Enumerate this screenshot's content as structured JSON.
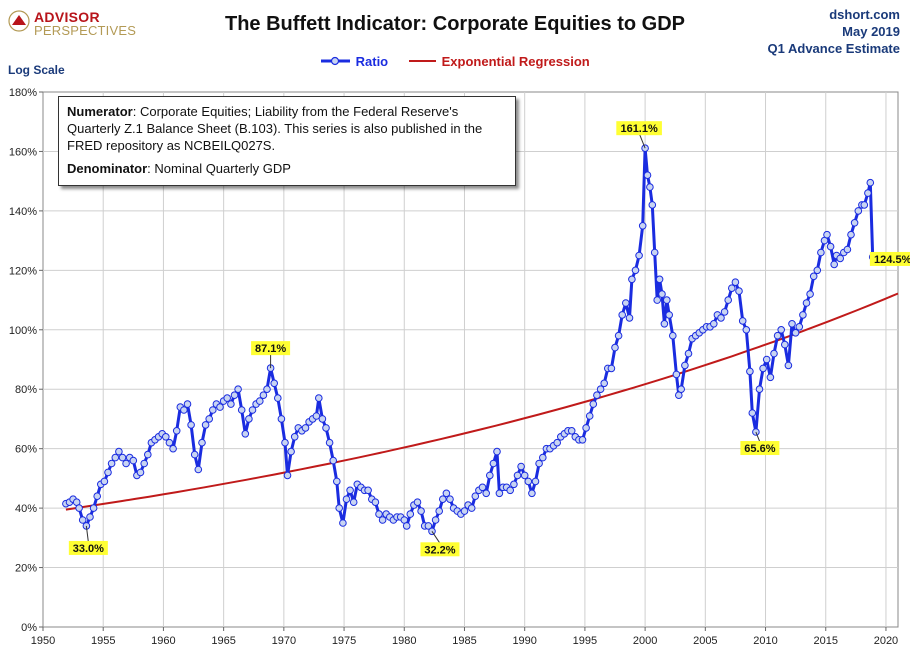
{
  "header": {
    "logo_line1": "ADVISOR",
    "logo_line2": "PERSPECTIVES",
    "title": "The Buffett Indicator: Corporate Equities to GDP",
    "source_line1": "dshort.com",
    "source_line2": "May 2019",
    "source_line3": "Q1 Advance Estimate"
  },
  "scale_label": "Log Scale",
  "note": {
    "numerator_label": "Numerator",
    "numerator_text": ": Corporate Equities; Liability from the Federal Reserve's Quarterly Z.1 Balance Sheet (B.103). This series is also published in the FRED repository  as NCBEILQ027S.",
    "denominator_label": "Denominator",
    "denominator_text": ": Nominal Quarterly GDP"
  },
  "colors": {
    "ratio_line": "#1a2ce0",
    "ratio_marker_fill": "#c8d4f2",
    "regression_line": "#c01a1a",
    "annotation_bg": "#ffff33",
    "grid": "#cfcfcf"
  },
  "chart_data": {
    "type": "line",
    "title": "The Buffett Indicator: Corporate Equities to GDP",
    "xlabel": "",
    "ylabel": "",
    "xlim": [
      1950,
      2021
    ],
    "ylim": [
      0,
      180
    ],
    "x_ticks": [
      1950,
      1955,
      1960,
      1965,
      1970,
      1975,
      1980,
      1985,
      1990,
      1995,
      2000,
      2005,
      2010,
      2015,
      2020
    ],
    "y_ticks": [
      0,
      20,
      40,
      60,
      80,
      100,
      120,
      140,
      160,
      180
    ],
    "y_tick_format": "percent",
    "grid": true,
    "legend_position": "top-center",
    "series": [
      {
        "name": "Ratio",
        "points": [
          [
            1951.9,
            41.5
          ],
          [
            1952.2,
            42
          ],
          [
            1952.5,
            43
          ],
          [
            1952.8,
            42
          ],
          [
            1953.0,
            40
          ],
          [
            1953.3,
            36
          ],
          [
            1953.6,
            34
          ],
          [
            1953.9,
            37
          ],
          [
            1954.2,
            40
          ],
          [
            1954.5,
            44
          ],
          [
            1954.8,
            48
          ],
          [
            1955.1,
            49
          ],
          [
            1955.4,
            52
          ],
          [
            1955.7,
            55
          ],
          [
            1956.0,
            57
          ],
          [
            1956.3,
            59
          ],
          [
            1956.6,
            57
          ],
          [
            1956.9,
            55
          ],
          [
            1957.2,
            57
          ],
          [
            1957.5,
            56
          ],
          [
            1957.8,
            51
          ],
          [
            1958.1,
            52
          ],
          [
            1958.4,
            55
          ],
          [
            1958.7,
            58
          ],
          [
            1959.0,
            62
          ],
          [
            1959.3,
            63
          ],
          [
            1959.6,
            64
          ],
          [
            1959.9,
            65
          ],
          [
            1960.2,
            64
          ],
          [
            1960.5,
            62
          ],
          [
            1960.8,
            60
          ],
          [
            1961.1,
            66
          ],
          [
            1961.4,
            74
          ],
          [
            1961.7,
            73
          ],
          [
            1962.0,
            75
          ],
          [
            1962.3,
            68
          ],
          [
            1962.6,
            58
          ],
          [
            1962.9,
            53
          ],
          [
            1963.2,
            62
          ],
          [
            1963.5,
            68
          ],
          [
            1963.8,
            70
          ],
          [
            1964.1,
            73
          ],
          [
            1964.4,
            75
          ],
          [
            1964.7,
            74
          ],
          [
            1965.0,
            76
          ],
          [
            1965.3,
            77
          ],
          [
            1965.6,
            75
          ],
          [
            1965.9,
            78
          ],
          [
            1966.2,
            80
          ],
          [
            1966.5,
            73
          ],
          [
            1966.8,
            65
          ],
          [
            1967.1,
            70
          ],
          [
            1967.4,
            73
          ],
          [
            1967.7,
            75
          ],
          [
            1968.0,
            76
          ],
          [
            1968.3,
            78
          ],
          [
            1968.6,
            80
          ],
          [
            1968.9,
            87.1
          ],
          [
            1969.2,
            82
          ],
          [
            1969.5,
            77
          ],
          [
            1969.8,
            70
          ],
          [
            1970.1,
            62
          ],
          [
            1970.3,
            51
          ],
          [
            1970.6,
            59
          ],
          [
            1970.9,
            64
          ],
          [
            1971.2,
            67
          ],
          [
            1971.5,
            66
          ],
          [
            1971.8,
            67
          ],
          [
            1972.1,
            69
          ],
          [
            1972.4,
            70
          ],
          [
            1972.7,
            71
          ],
          [
            1972.9,
            77
          ],
          [
            1973.2,
            70
          ],
          [
            1973.5,
            67
          ],
          [
            1973.8,
            62
          ],
          [
            1974.1,
            56
          ],
          [
            1974.4,
            49
          ],
          [
            1974.6,
            40
          ],
          [
            1974.9,
            35
          ],
          [
            1975.2,
            43
          ],
          [
            1975.5,
            46
          ],
          [
            1975.8,
            42
          ],
          [
            1976.1,
            48
          ],
          [
            1976.4,
            47
          ],
          [
            1976.7,
            46
          ],
          [
            1977.0,
            46
          ],
          [
            1977.3,
            43
          ],
          [
            1977.6,
            42
          ],
          [
            1977.9,
            38
          ],
          [
            1978.2,
            36
          ],
          [
            1978.5,
            38
          ],
          [
            1978.8,
            37
          ],
          [
            1979.1,
            36
          ],
          [
            1979.4,
            37
          ],
          [
            1979.7,
            37
          ],
          [
            1980.0,
            36
          ],
          [
            1980.2,
            34
          ],
          [
            1980.5,
            38
          ],
          [
            1980.8,
            41
          ],
          [
            1981.1,
            42
          ],
          [
            1981.4,
            39
          ],
          [
            1981.7,
            34
          ],
          [
            1982.0,
            34
          ],
          [
            1982.3,
            32.2
          ],
          [
            1982.6,
            36
          ],
          [
            1982.9,
            39
          ],
          [
            1983.2,
            43
          ],
          [
            1983.5,
            45
          ],
          [
            1983.8,
            43
          ],
          [
            1984.1,
            40
          ],
          [
            1984.4,
            39
          ],
          [
            1984.7,
            38
          ],
          [
            1985.0,
            39
          ],
          [
            1985.3,
            41
          ],
          [
            1985.6,
            40
          ],
          [
            1985.9,
            44
          ],
          [
            1986.2,
            46
          ],
          [
            1986.5,
            47
          ],
          [
            1986.8,
            45
          ],
          [
            1987.1,
            51
          ],
          [
            1987.4,
            55
          ],
          [
            1987.7,
            59
          ],
          [
            1987.9,
            45
          ],
          [
            1988.2,
            47
          ],
          [
            1988.5,
            47
          ],
          [
            1988.8,
            46
          ],
          [
            1989.1,
            48
          ],
          [
            1989.4,
            51
          ],
          [
            1989.7,
            54
          ],
          [
            1990.0,
            51
          ],
          [
            1990.3,
            49
          ],
          [
            1990.6,
            45
          ],
          [
            1990.9,
            49
          ],
          [
            1991.2,
            55
          ],
          [
            1991.5,
            57
          ],
          [
            1991.8,
            60
          ],
          [
            1992.1,
            60
          ],
          [
            1992.4,
            61
          ],
          [
            1992.7,
            62
          ],
          [
            1993.0,
            64
          ],
          [
            1993.3,
            65
          ],
          [
            1993.6,
            66
          ],
          [
            1993.9,
            66
          ],
          [
            1994.2,
            64
          ],
          [
            1994.5,
            63
          ],
          [
            1994.8,
            63
          ],
          [
            1995.1,
            67
          ],
          [
            1995.4,
            71
          ],
          [
            1995.7,
            75
          ],
          [
            1996.0,
            78
          ],
          [
            1996.3,
            80
          ],
          [
            1996.6,
            82
          ],
          [
            1996.9,
            87
          ],
          [
            1997.2,
            87
          ],
          [
            1997.5,
            94
          ],
          [
            1997.8,
            98
          ],
          [
            1998.1,
            105
          ],
          [
            1998.4,
            109
          ],
          [
            1998.7,
            104
          ],
          [
            1998.9,
            117
          ],
          [
            1999.2,
            120
          ],
          [
            1999.5,
            125
          ],
          [
            1999.8,
            135
          ],
          [
            2000.0,
            161.1
          ],
          [
            2000.2,
            152
          ],
          [
            2000.4,
            148
          ],
          [
            2000.6,
            142
          ],
          [
            2000.8,
            126
          ],
          [
            2001.0,
            110
          ],
          [
            2001.2,
            117
          ],
          [
            2001.4,
            112
          ],
          [
            2001.6,
            102
          ],
          [
            2001.8,
            110
          ],
          [
            2002.0,
            105
          ],
          [
            2002.3,
            98
          ],
          [
            2002.6,
            85
          ],
          [
            2002.8,
            78
          ],
          [
            2003.0,
            80
          ],
          [
            2003.3,
            88
          ],
          [
            2003.6,
            92
          ],
          [
            2003.9,
            97
          ],
          [
            2004.2,
            98
          ],
          [
            2004.5,
            99
          ],
          [
            2004.8,
            100
          ],
          [
            2005.1,
            101
          ],
          [
            2005.4,
            101
          ],
          [
            2005.7,
            102
          ],
          [
            2006.0,
            105
          ],
          [
            2006.3,
            104
          ],
          [
            2006.6,
            106
          ],
          [
            2006.9,
            110
          ],
          [
            2007.2,
            114
          ],
          [
            2007.5,
            116
          ],
          [
            2007.8,
            113
          ],
          [
            2008.1,
            103
          ],
          [
            2008.4,
            100
          ],
          [
            2008.7,
            86
          ],
          [
            2008.9,
            72
          ],
          [
            2009.2,
            65.6
          ],
          [
            2009.5,
            80
          ],
          [
            2009.8,
            87
          ],
          [
            2010.1,
            90
          ],
          [
            2010.4,
            84
          ],
          [
            2010.7,
            92
          ],
          [
            2011.0,
            98
          ],
          [
            2011.3,
            100
          ],
          [
            2011.6,
            95
          ],
          [
            2011.9,
            88
          ],
          [
            2012.2,
            102
          ],
          [
            2012.5,
            99
          ],
          [
            2012.8,
            101
          ],
          [
            2013.1,
            105
          ],
          [
            2013.4,
            109
          ],
          [
            2013.7,
            112
          ],
          [
            2014.0,
            118
          ],
          [
            2014.3,
            120
          ],
          [
            2014.6,
            126
          ],
          [
            2014.9,
            130
          ],
          [
            2015.1,
            132
          ],
          [
            2015.4,
            128
          ],
          [
            2015.7,
            122
          ],
          [
            2015.9,
            125
          ],
          [
            2016.2,
            124
          ],
          [
            2016.5,
            126
          ],
          [
            2016.8,
            127
          ],
          [
            2017.1,
            132
          ],
          [
            2017.4,
            136
          ],
          [
            2017.7,
            140
          ],
          [
            2018.0,
            142
          ],
          [
            2018.2,
            142
          ],
          [
            2018.5,
            146
          ],
          [
            2018.7,
            149.5
          ],
          [
            2018.9,
            124.5
          ]
        ]
      },
      {
        "name": "Exponential Regression",
        "points": [
          [
            1951.9,
            39.5
          ],
          [
            2021.0,
            112.2
          ]
        ]
      }
    ],
    "annotations": [
      {
        "label": "33.0%",
        "x": 1953.6,
        "y": 34
      },
      {
        "label": "87.1%",
        "x": 1968.9,
        "y": 87.1
      },
      {
        "label": "32.2%",
        "x": 1982.3,
        "y": 32.2
      },
      {
        "label": "161.1%",
        "x": 2000.0,
        "y": 161.1
      },
      {
        "label": "65.6%",
        "x": 2009.2,
        "y": 65.6
      },
      {
        "label": "124.5%",
        "x": 2018.9,
        "y": 124.5
      }
    ]
  }
}
